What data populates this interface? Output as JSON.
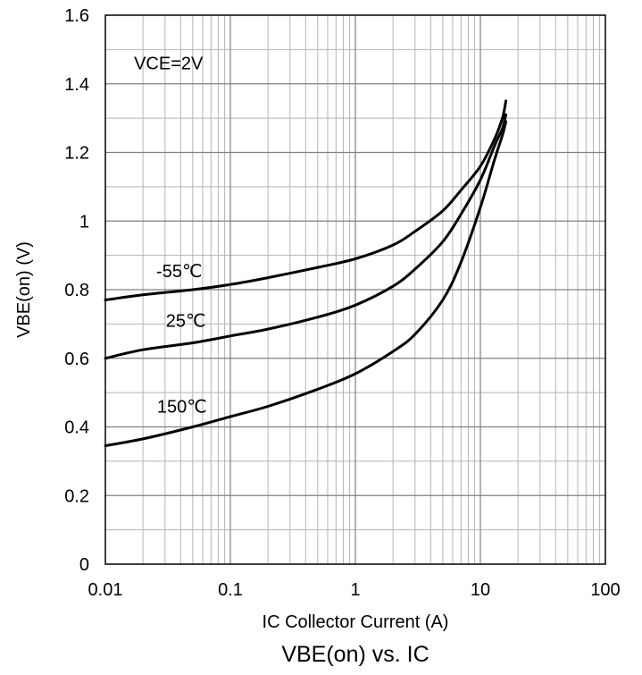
{
  "chart_data": {
    "type": "line",
    "title": "VBE(on) vs. IC",
    "xlabel": "IC  Collector Current (A)",
    "ylabel": "VBE(on) (V)",
    "xscale": "log",
    "xlim": [
      0.01,
      100
    ],
    "ylim": [
      0,
      1.6
    ],
    "grid": true,
    "x_ticks": [
      "0.01",
      "0.1",
      "1",
      "10",
      "100"
    ],
    "y_ticks": [
      "0",
      "0.2",
      "0.4",
      "0.6",
      "0.8",
      "1",
      "1.2",
      "1.4",
      "1.6"
    ],
    "annotations": [
      {
        "text": "VCE=2V",
        "x": 0.032,
        "y": 1.46
      },
      {
        "text": "-55℃",
        "x": 0.039,
        "y": 0.855
      },
      {
        "text": "25℃",
        "x": 0.044,
        "y": 0.71
      },
      {
        "text": "150℃",
        "x": 0.041,
        "y": 0.46
      }
    ],
    "series": [
      {
        "name": "-55℃",
        "x": [
          0.01,
          0.02,
          0.05,
          0.1,
          0.2,
          0.5,
          1,
          2,
          3,
          5,
          7,
          10,
          13,
          15,
          16
        ],
        "y": [
          0.77,
          0.785,
          0.8,
          0.815,
          0.835,
          0.865,
          0.89,
          0.93,
          0.97,
          1.03,
          1.09,
          1.16,
          1.24,
          1.3,
          1.35
        ]
      },
      {
        "name": "25℃",
        "x": [
          0.01,
          0.02,
          0.05,
          0.1,
          0.2,
          0.5,
          1,
          2,
          3,
          5,
          7,
          10,
          13,
          15,
          16
        ],
        "y": [
          0.6,
          0.625,
          0.645,
          0.665,
          0.685,
          0.72,
          0.755,
          0.81,
          0.86,
          0.94,
          1.02,
          1.12,
          1.22,
          1.27,
          1.31
        ]
      },
      {
        "name": "150℃",
        "x": [
          0.01,
          0.02,
          0.05,
          0.1,
          0.2,
          0.5,
          1,
          2,
          3,
          5,
          7,
          10,
          13,
          15,
          16
        ],
        "y": [
          0.345,
          0.365,
          0.4,
          0.43,
          0.46,
          0.51,
          0.555,
          0.62,
          0.67,
          0.77,
          0.88,
          1.04,
          1.18,
          1.25,
          1.29
        ]
      }
    ]
  }
}
